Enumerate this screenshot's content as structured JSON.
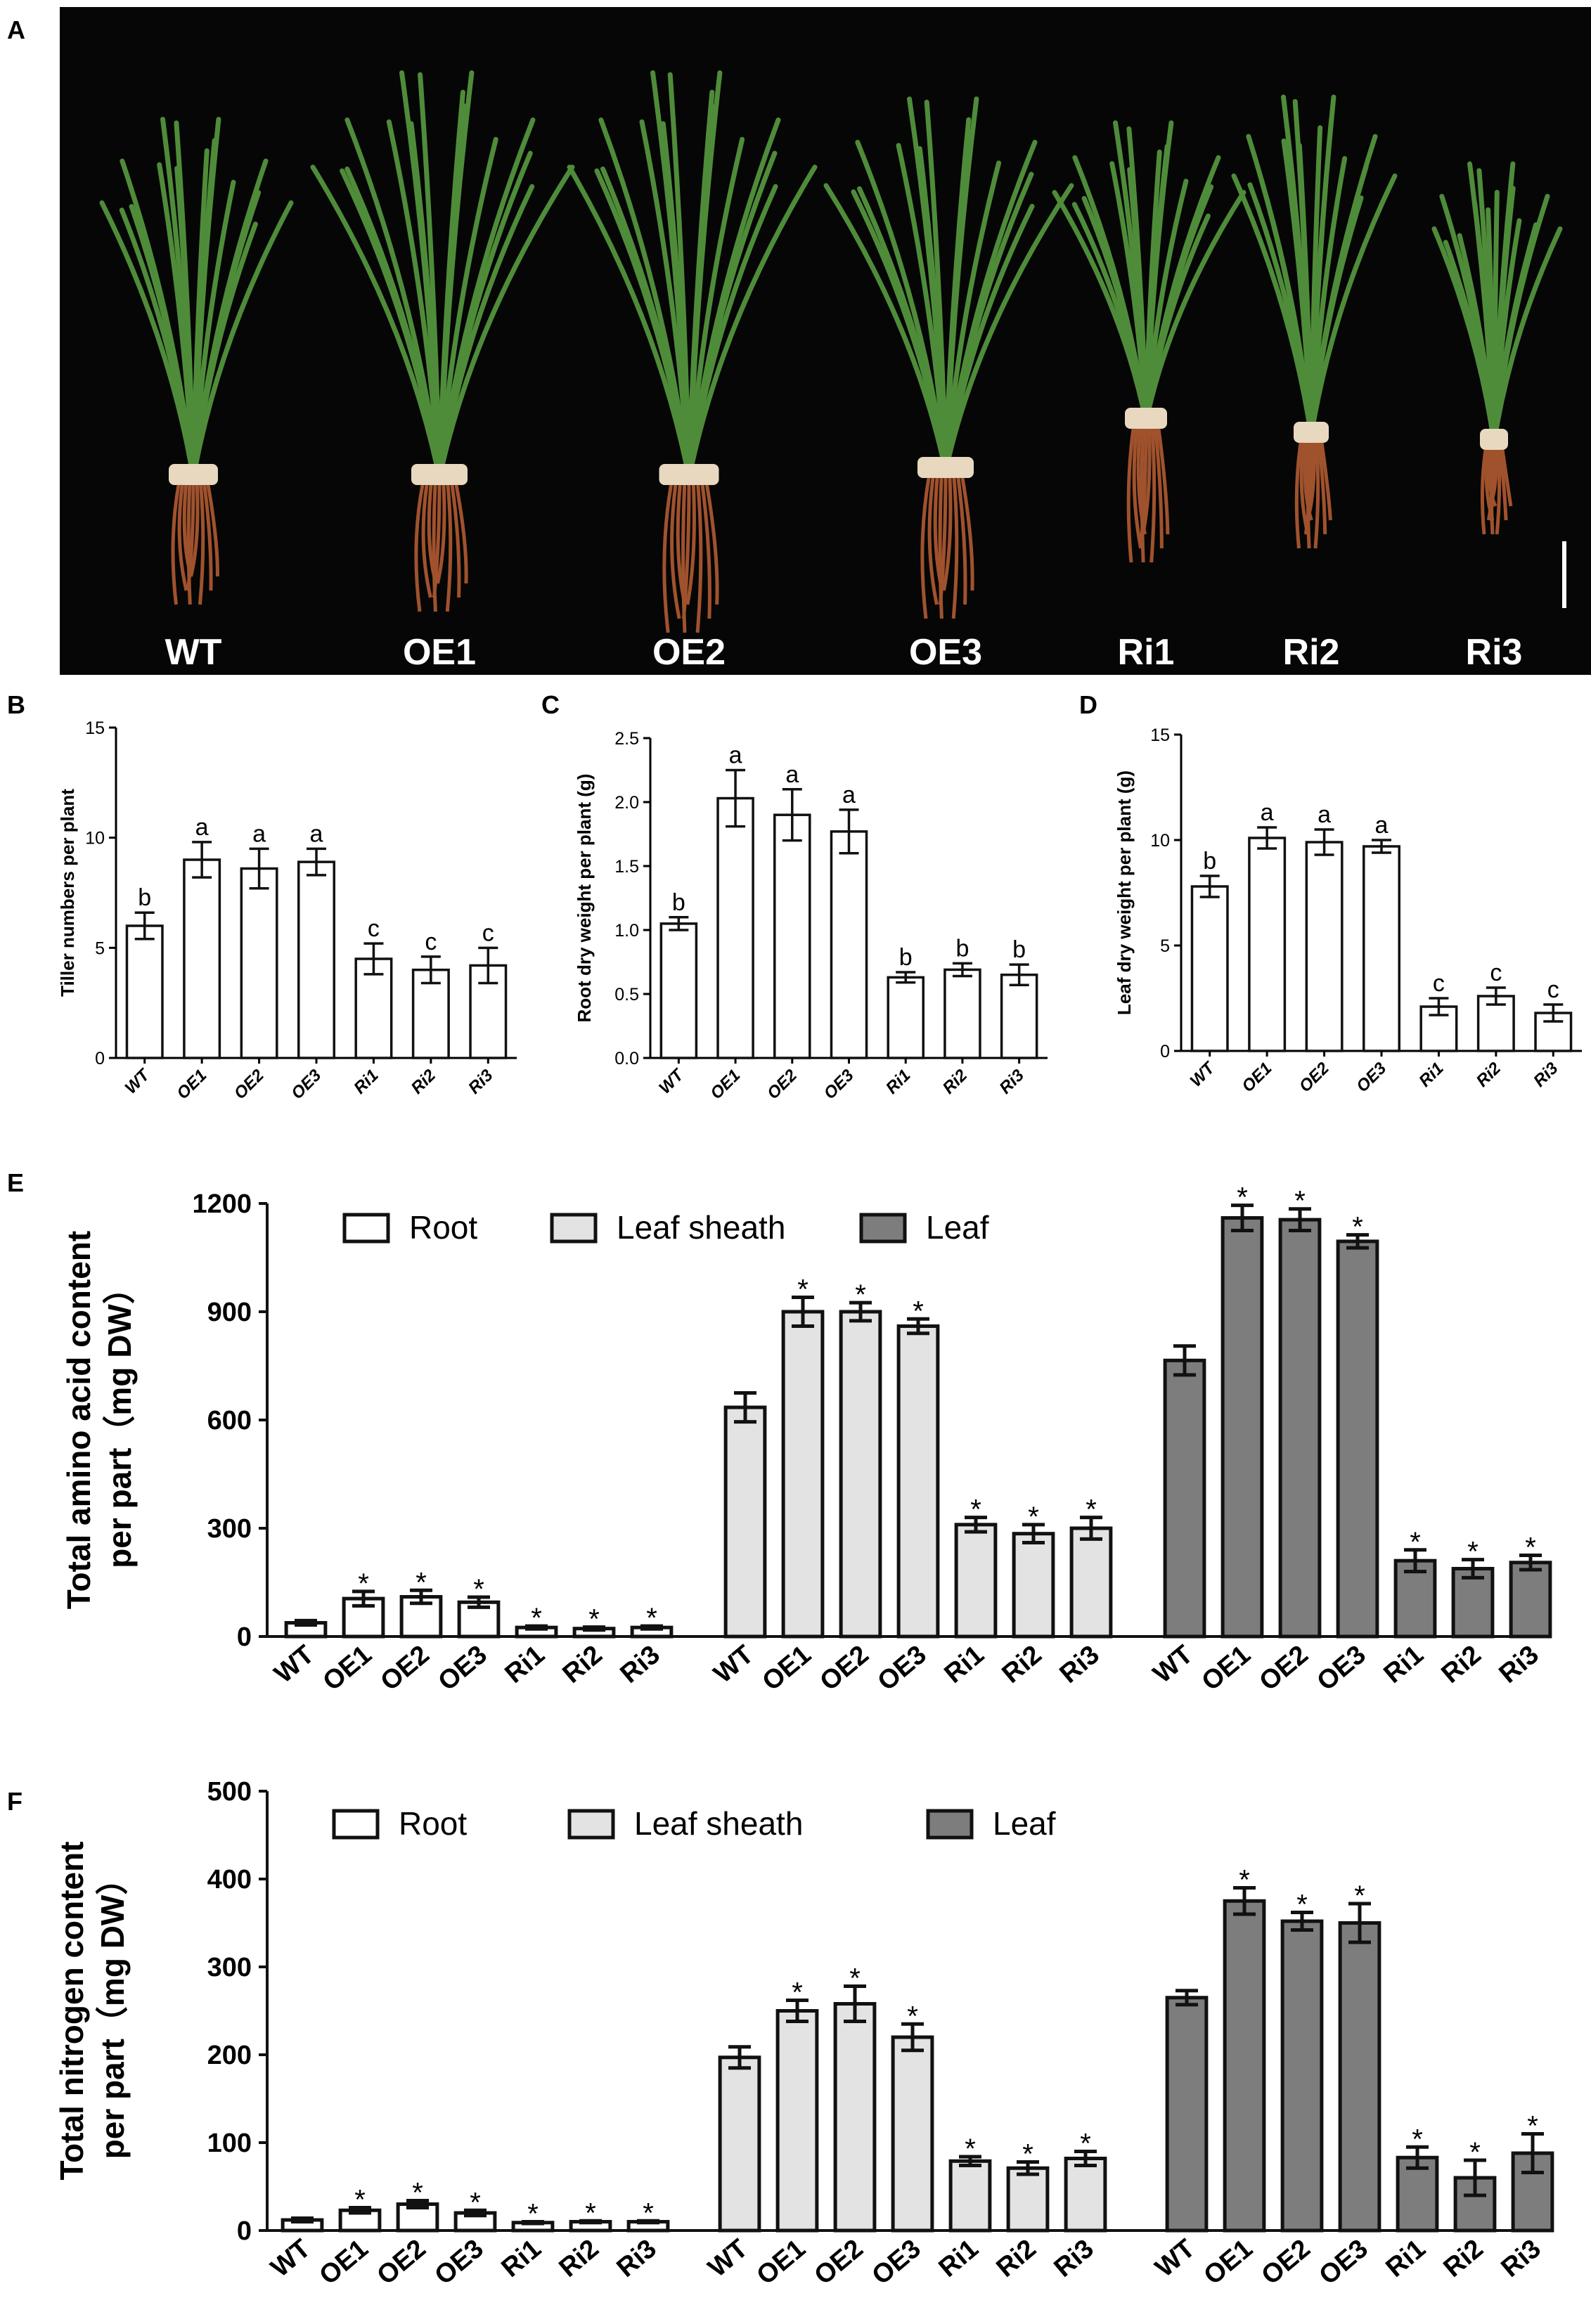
{
  "panel_labels": [
    "A",
    "B",
    "C",
    "D",
    "E",
    "F"
  ],
  "photo": {
    "plant_labels": [
      "WT",
      "OE1",
      "OE2",
      "OE3",
      "Ri1",
      "Ri2",
      "Ri3"
    ],
    "background_color": "#060606",
    "leaf_color": "#4f8c3a",
    "root_color": "#a0522d"
  },
  "chart_data": [
    {
      "id": "B",
      "type": "bar",
      "categories": [
        "WT",
        "OE1",
        "OE2",
        "OE3",
        "Ri1",
        "Ri2",
        "Ri3"
      ],
      "values": [
        6.0,
        9.0,
        8.6,
        8.9,
        4.5,
        4.0,
        4.2
      ],
      "errors": [
        0.6,
        0.8,
        0.9,
        0.6,
        0.7,
        0.6,
        0.8
      ],
      "letters": [
        "b",
        "a",
        "a",
        "a",
        "c",
        "c",
        "c"
      ],
      "ylabel": "Tiller numbers per plant",
      "ylim": [
        0,
        15
      ],
      "yticks": [
        0,
        5,
        10,
        15
      ],
      "ytick_labels": [
        "0",
        "5",
        "10",
        "15"
      ]
    },
    {
      "id": "C",
      "type": "bar",
      "categories": [
        "WT",
        "OE1",
        "OE2",
        "OE3",
        "Ri1",
        "Ri2",
        "Ri3"
      ],
      "values": [
        1.05,
        2.03,
        1.9,
        1.77,
        0.63,
        0.69,
        0.65
      ],
      "errors": [
        0.05,
        0.22,
        0.2,
        0.17,
        0.04,
        0.05,
        0.08
      ],
      "letters": [
        "b",
        "a",
        "a",
        "a",
        "b",
        "b",
        "b"
      ],
      "ylabel": "Root dry weight per plant (g)",
      "ylim": [
        0,
        2.5
      ],
      "yticks": [
        0,
        0.5,
        1.0,
        1.5,
        2.0,
        2.5
      ],
      "ytick_labels": [
        "0.0",
        "0.5",
        "1.0",
        "1.5",
        "2.0",
        "2.5"
      ]
    },
    {
      "id": "D",
      "type": "bar",
      "categories": [
        "WT",
        "OE1",
        "OE2",
        "OE3",
        "Ri1",
        "Ri2",
        "Ri3"
      ],
      "values": [
        7.8,
        10.1,
        9.9,
        9.7,
        2.1,
        2.6,
        1.8
      ],
      "errors": [
        0.5,
        0.5,
        0.6,
        0.3,
        0.4,
        0.4,
        0.4
      ],
      "letters": [
        "b",
        "a",
        "a",
        "a",
        "c",
        "c",
        "c"
      ],
      "ylabel": "Leaf dry weight per plant (g)",
      "ylim": [
        0,
        15
      ],
      "yticks": [
        0,
        5,
        10,
        15
      ],
      "ytick_labels": [
        "0",
        "5",
        "10",
        "15"
      ]
    },
    {
      "id": "E",
      "type": "bar",
      "categories": [
        "WT",
        "OE1",
        "OE2",
        "OE3",
        "Ri1",
        "Ri2",
        "Ri3"
      ],
      "ylabel_lines": [
        "Total amino acid content",
        "per part（mg DW）"
      ],
      "ylim": [
        0,
        1200
      ],
      "yticks": [
        0,
        300,
        600,
        900,
        1200
      ],
      "ytick_labels": [
        "0",
        "300",
        "600",
        "900",
        "1200"
      ],
      "legend_position": "top",
      "series": [
        {
          "name": "Root",
          "color": "#ffffff",
          "values": [
            38,
            105,
            110,
            95,
            25,
            22,
            25
          ],
          "errors": [
            6,
            20,
            18,
            14,
            4,
            4,
            4
          ],
          "stars": [
            false,
            true,
            true,
            true,
            true,
            true,
            true
          ]
        },
        {
          "name": "Leaf sheath",
          "color": "#e3e3e3",
          "values": [
            635,
            900,
            900,
            860,
            310,
            285,
            300
          ],
          "errors": [
            40,
            40,
            25,
            20,
            20,
            25,
            30
          ],
          "stars": [
            false,
            true,
            true,
            true,
            true,
            true,
            true
          ]
        },
        {
          "name": "Leaf",
          "color": "#7d7d7d",
          "values": [
            765,
            1160,
            1155,
            1095,
            210,
            188,
            205
          ],
          "errors": [
            40,
            35,
            30,
            18,
            30,
            25,
            20
          ],
          "stars": [
            false,
            true,
            true,
            true,
            true,
            true,
            true
          ]
        }
      ]
    },
    {
      "id": "F",
      "type": "bar",
      "categories": [
        "WT",
        "OE1",
        "OE2",
        "OE3",
        "Ri1",
        "Ri2",
        "Ri3"
      ],
      "ylabel_lines": [
        "Total nitrogen content",
        "per part（mg DW）"
      ],
      "ylim": [
        0,
        500
      ],
      "yticks": [
        0,
        100,
        200,
        300,
        400,
        500
      ],
      "ytick_labels": [
        "0",
        "100",
        "200",
        "300",
        "400",
        "500"
      ],
      "legend_position": "top",
      "series": [
        {
          "name": "Root",
          "color": "#ffffff",
          "values": [
            12,
            23,
            30,
            20,
            9,
            10,
            10
          ],
          "errors": [
            2,
            3,
            4,
            3,
            1,
            1,
            1
          ],
          "stars": [
            false,
            true,
            true,
            true,
            true,
            true,
            true
          ]
        },
        {
          "name": "Leaf sheath",
          "color": "#e3e3e3",
          "values": [
            197,
            250,
            258,
            220,
            79,
            71,
            82
          ],
          "errors": [
            12,
            12,
            20,
            15,
            5,
            7,
            8
          ],
          "stars": [
            false,
            true,
            true,
            true,
            true,
            true,
            true
          ]
        },
        {
          "name": "Leaf",
          "color": "#7d7d7d",
          "values": [
            265,
            375,
            352,
            350,
            83,
            60,
            88
          ],
          "errors": [
            8,
            15,
            10,
            22,
            12,
            20,
            22
          ],
          "stars": [
            false,
            true,
            true,
            true,
            true,
            true,
            true
          ]
        }
      ]
    }
  ]
}
